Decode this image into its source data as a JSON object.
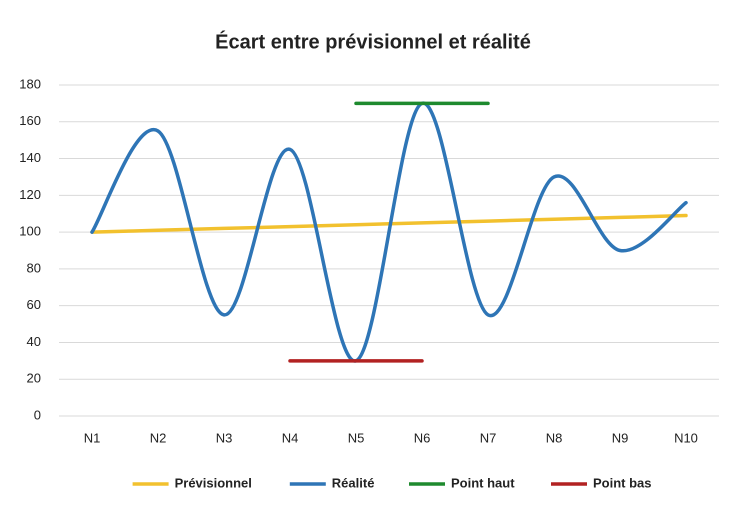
{
  "chart_data": {
    "type": "line",
    "title": "Écart entre prévisionnel et réalité",
    "categories": [
      "N1",
      "N2",
      "N3",
      "N4",
      "N5",
      "N6",
      "N7",
      "N8",
      "N9",
      "N10"
    ],
    "series": [
      {
        "name": "Prévisionnel",
        "color": "#f2c12e",
        "values": [
          100,
          101,
          102,
          103,
          104,
          105,
          106,
          107,
          108,
          109
        ]
      },
      {
        "name": "Réalité",
        "color": "#2e75b6",
        "values": [
          100,
          155,
          55,
          145,
          30,
          170,
          55,
          130,
          90,
          116
        ]
      },
      {
        "name": "Point haut",
        "color": "#1e8a2e",
        "values": [
          null,
          null,
          null,
          null,
          170,
          170,
          170,
          null,
          null,
          null
        ]
      },
      {
        "name": "Point bas",
        "color": "#b22222",
        "values": [
          null,
          null,
          null,
          30,
          30,
          30,
          null,
          null,
          null,
          null
        ]
      }
    ],
    "ylim": [
      0,
      180
    ],
    "yticks": [
      0,
      20,
      40,
      60,
      80,
      100,
      120,
      140,
      160,
      180
    ],
    "grid": true,
    "smooth": true,
    "legend": "bottom"
  }
}
